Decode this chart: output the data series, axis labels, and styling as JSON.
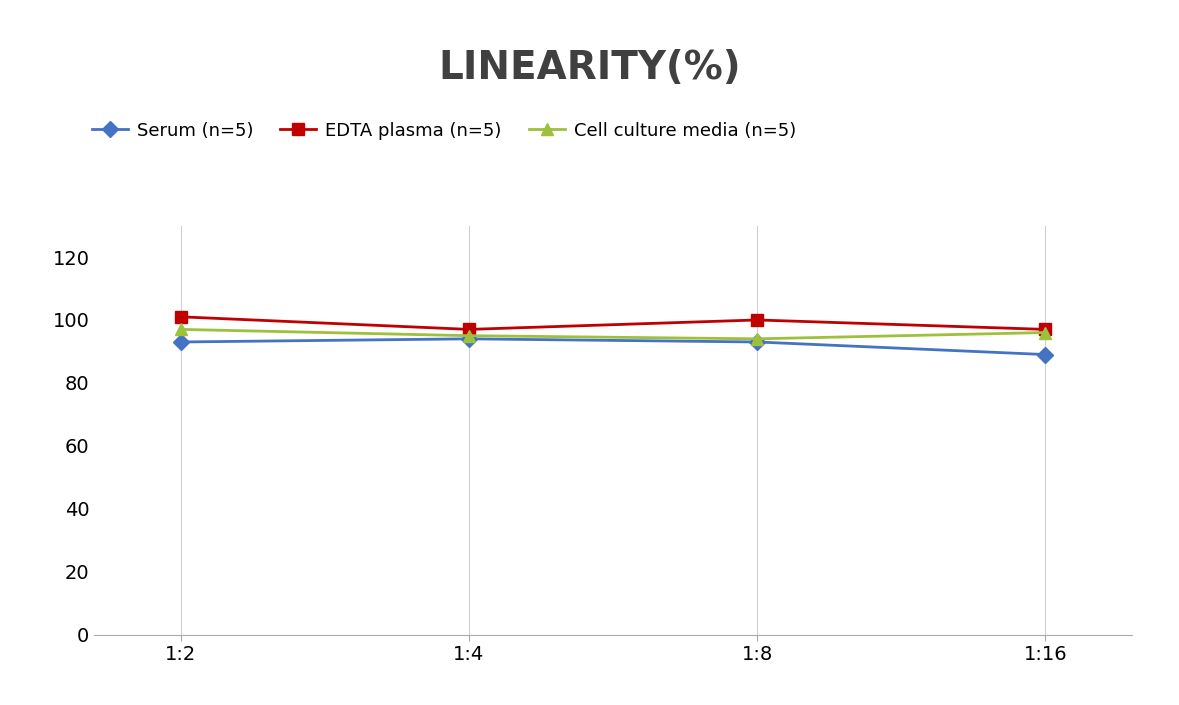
{
  "title": "LINEARITY(%)",
  "title_fontsize": 28,
  "title_fontweight": "bold",
  "title_color": "#404040",
  "x_labels": [
    "1:2",
    "1:4",
    "1:8",
    "1:16"
  ],
  "x_values": [
    0,
    1,
    2,
    3
  ],
  "series": [
    {
      "label": "Serum (n=5)",
      "values": [
        93,
        94,
        93,
        89
      ],
      "color": "#4472C4",
      "marker": "D",
      "marker_size": 8,
      "linewidth": 2
    },
    {
      "label": "EDTA plasma (n=5)",
      "values": [
        101,
        97,
        100,
        97
      ],
      "color": "#C00000",
      "marker": "s",
      "marker_size": 8,
      "linewidth": 2
    },
    {
      "label": "Cell culture media (n=5)",
      "values": [
        97,
        95,
        94,
        96
      ],
      "color": "#9DC13B",
      "marker": "^",
      "marker_size": 8,
      "linewidth": 2
    }
  ],
  "ylim": [
    0,
    130
  ],
  "yticks": [
    0,
    20,
    40,
    60,
    80,
    100,
    120
  ],
  "background_color": "#ffffff",
  "grid_color": "#d0d0d0",
  "legend_fontsize": 13,
  "tick_fontsize": 14
}
